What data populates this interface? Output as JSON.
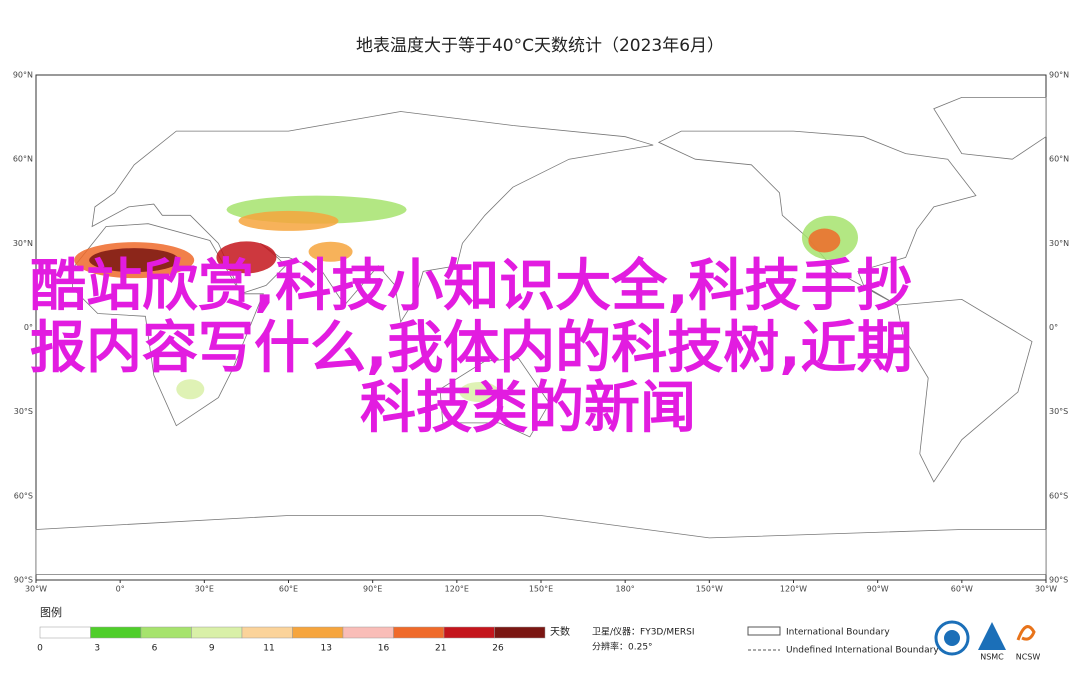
{
  "title": "地表温度大于等于40°C天数统计（2023年6月）",
  "lat_labels": [
    "90°N",
    "60°N",
    "30°N",
    "0°",
    "30°S",
    "60°S",
    "90°S"
  ],
  "lon_labels": [
    "30°W",
    "0°",
    "30°E",
    "60°E",
    "90°E",
    "120°E",
    "150°E",
    "180°",
    "150°W",
    "120°W",
    "90°W",
    "60°W",
    "30°W"
  ],
  "legend": {
    "title": "图例",
    "unit": "天数",
    "colors": [
      "#ffffff",
      "#4fce2a",
      "#a6e36d",
      "#d9f0a8",
      "#fbd39a",
      "#f6a53d",
      "#f9bdb8",
      "#ef6a2a",
      "#c4151c",
      "#7a1612"
    ],
    "ticks": [
      0,
      3,
      6,
      9,
      11,
      13,
      16,
      21,
      26
    ]
  },
  "info": {
    "satellite": "卫星/仪器：FY3D/MERSI",
    "resolution": "分辨率：0.25°"
  },
  "boundaries": {
    "international": "International Boundary",
    "undefined": "Undefined International Boundary"
  },
  "logos": [
    "NSMC",
    "NCSW"
  ],
  "watermark": [
    "酷站欣赏,科技小知识大全,科技手抄",
    "报内容写什么,我体内的科技树,近期",
    "科技类的新闻"
  ]
}
